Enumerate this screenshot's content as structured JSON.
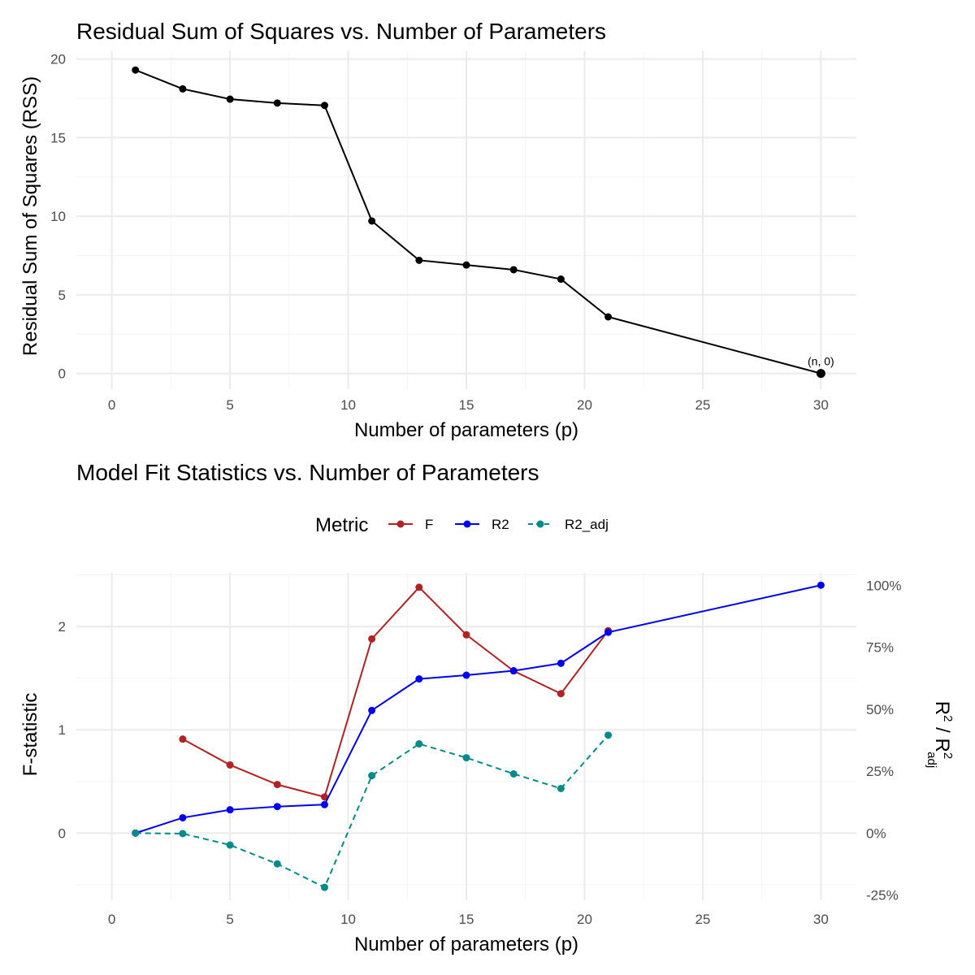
{
  "chart_data": [
    {
      "type": "line",
      "title": "Residual Sum of Squares vs. Number of Parameters",
      "xlabel": "Number of parameters (p)",
      "ylabel": "Residual Sum of Squares (RSS)",
      "xlim": [
        -1.5,
        31.5
      ],
      "ylim": [
        -1,
        20.5
      ],
      "xticks": [
        0,
        5,
        10,
        15,
        20,
        25,
        30
      ],
      "yticks": [
        0,
        5,
        10,
        15,
        20
      ],
      "grid": true,
      "colors": {
        "line": "#000000"
      },
      "series": [
        {
          "x": [
            1,
            3,
            5,
            7,
            9,
            11,
            13,
            15,
            17,
            19,
            21,
            30
          ],
          "y": [
            19.3,
            18.1,
            17.45,
            17.2,
            17.05,
            9.7,
            7.2,
            6.9,
            6.6,
            6.0,
            3.6,
            0
          ]
        }
      ],
      "annotations": [
        {
          "x": 30,
          "y": 0,
          "text": "(n, 0)"
        }
      ]
    },
    {
      "type": "line",
      "title": "Model Fit Statistics vs. Number of Parameters",
      "xlabel": "Number of parameters (p)",
      "ylabel": "F-statistic",
      "ylabel_right": {
        "base": "R",
        "sup": "2",
        "sep": " / ",
        "base2": "R",
        "sup2": "2",
        "sub2": "adj"
      },
      "xlim": [
        -1.5,
        31.5
      ],
      "ylim": [
        -0.65,
        2.52
      ],
      "xticks": [
        0,
        5,
        10,
        15,
        20,
        25,
        30
      ],
      "yticks": [
        0,
        1,
        2
      ],
      "yticks_right": {
        "ratios": [
          -0.25,
          0,
          0.25,
          0.5,
          0.75,
          1.0
        ],
        "labels": [
          "-25%",
          "0%",
          "25%",
          "50%",
          "75%",
          "100%"
        ]
      },
      "secondary_scale": 2.4,
      "grid": true,
      "legend": {
        "title": "Metric",
        "position": "top"
      },
      "series": [
        {
          "name": "F",
          "color": "#b22222",
          "dash": "solid",
          "axis": "left",
          "x": [
            3,
            5,
            7,
            9,
            11,
            13,
            15,
            17,
            19,
            21
          ],
          "y": [
            0.91,
            0.66,
            0.47,
            0.35,
            1.88,
            2.38,
            1.92,
            1.57,
            1.35,
            1.96
          ]
        },
        {
          "name": "R2",
          "color": "#0000ee",
          "dash": "solid",
          "axis": "right",
          "x": [
            1,
            3,
            5,
            7,
            9,
            11,
            13,
            15,
            17,
            19,
            21,
            30
          ],
          "y": [
            0.0,
            0.062,
            0.094,
            0.107,
            0.115,
            0.495,
            0.622,
            0.637,
            0.655,
            0.685,
            0.81,
            1.0
          ]
        },
        {
          "name": "R2_adj",
          "color": "#008b8b",
          "dash": "dashed",
          "axis": "right",
          "x": [
            1,
            3,
            5,
            7,
            9,
            11,
            13,
            15,
            17,
            19,
            21
          ],
          "y": [
            0.0,
            -0.002,
            -0.048,
            -0.124,
            -0.219,
            0.232,
            0.36,
            0.304,
            0.239,
            0.18,
            0.395
          ]
        }
      ]
    }
  ]
}
